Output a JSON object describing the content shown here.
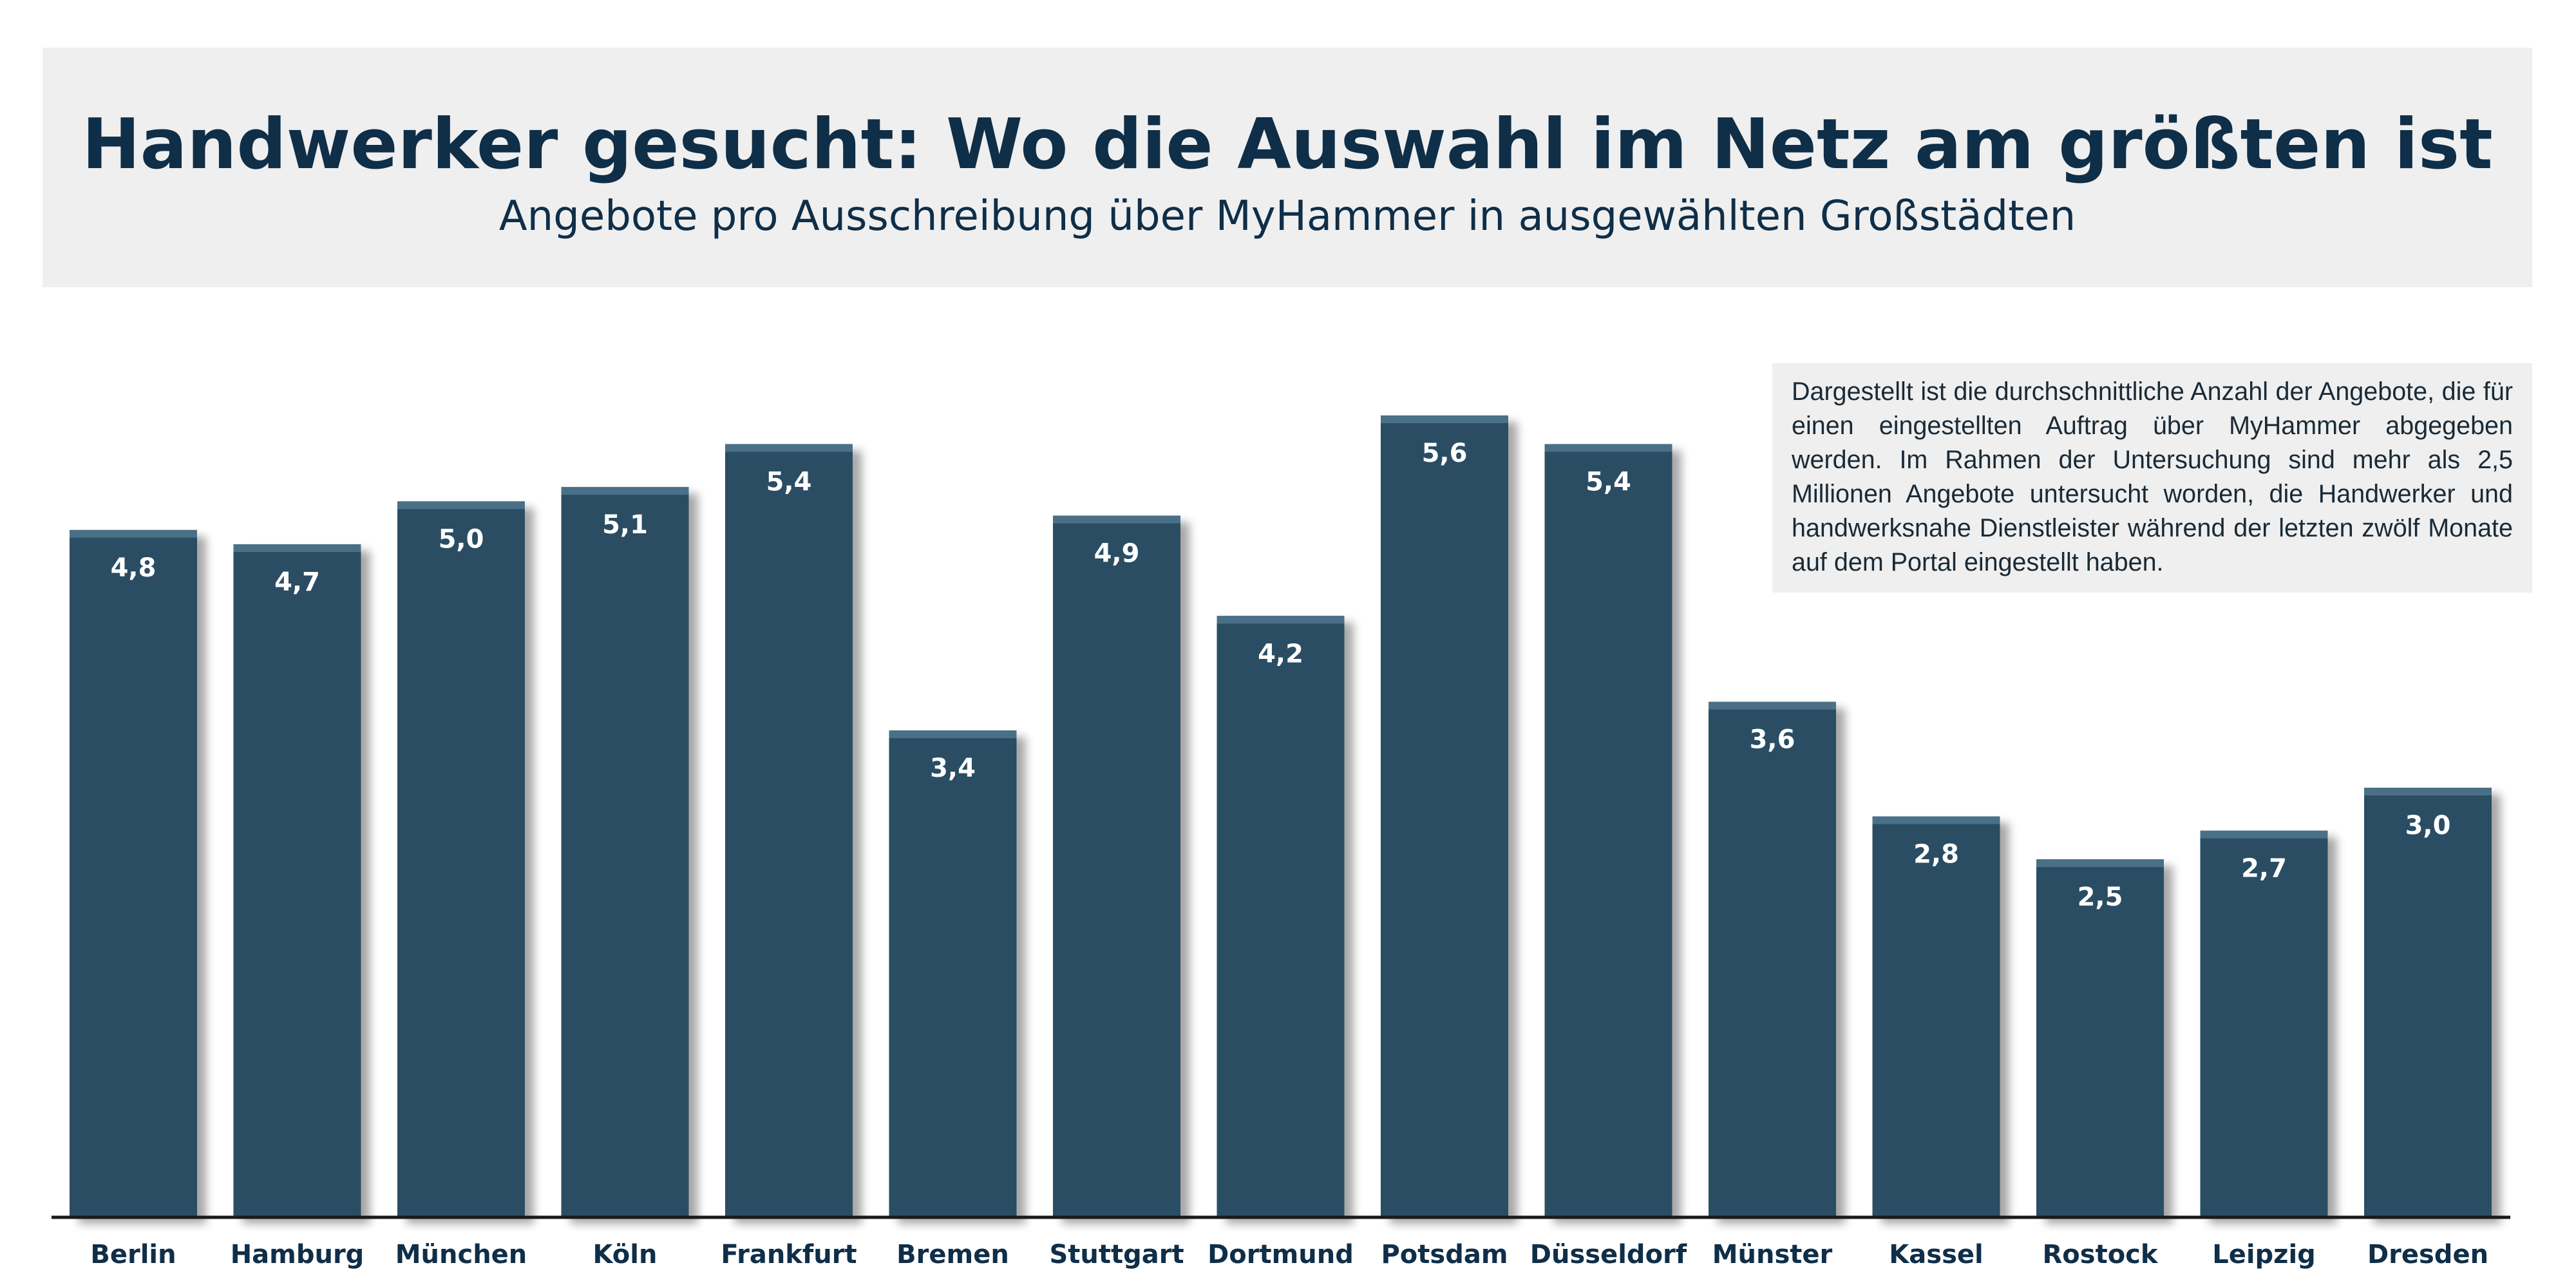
{
  "header": {
    "title": "Handwerker gesucht: Wo die Auswahl im Netz am größten ist",
    "subtitle": "Angebote pro Ausschreibung über MyHammer in ausgewählten Großstädten"
  },
  "note": {
    "text": "Dargestellt ist die durchschnittliche Anzahl der Angebote, die für einen eingestellten Auftrag über MyHammer abgegeben werden. Im Rahmen der Untersuchung sind mehr als 2,5 Millionen Angebote untersucht worden, die Handwerker und handwerksnahe Dienstleister während der letzten zwölf Monate auf dem Portal eingestellt haben."
  },
  "colors": {
    "bar": "#2a4e64",
    "bar_top": "#4a7088",
    "title": "#0f2e48",
    "header_bg": "#efefef",
    "axis": "#1a1a1a"
  },
  "chart_data": {
    "type": "bar",
    "categories": [
      "Berlin",
      "Hamburg",
      "München",
      "Köln",
      "Frankfurt",
      "Bremen",
      "Stuttgart",
      "Dortmund",
      "Potsdam",
      "Düsseldorf",
      "Münster",
      "Kassel",
      "Rostock",
      "Leipzig",
      "Dresden"
    ],
    "values": [
      4.8,
      4.7,
      5.0,
      5.1,
      5.4,
      3.4,
      4.9,
      4.2,
      5.6,
      5.4,
      3.6,
      2.8,
      2.5,
      2.7,
      3.0
    ],
    "value_labels": [
      "4,8",
      "4,7",
      "5,0",
      "5,1",
      "5,4",
      "3,4",
      "4,9",
      "4,2",
      "5,6",
      "5,4",
      "3,6",
      "2,8",
      "2,5",
      "2,7",
      "3,0"
    ],
    "title": "Handwerker gesucht: Wo die Auswahl im Netz am größten ist",
    "subtitle": "Angebote pro Ausschreibung über MyHammer in ausgewählten Großstädten",
    "xlabel": "",
    "ylabel": "",
    "ylim": [
      0,
      5.6
    ],
    "grid": false,
    "legend": "none"
  }
}
